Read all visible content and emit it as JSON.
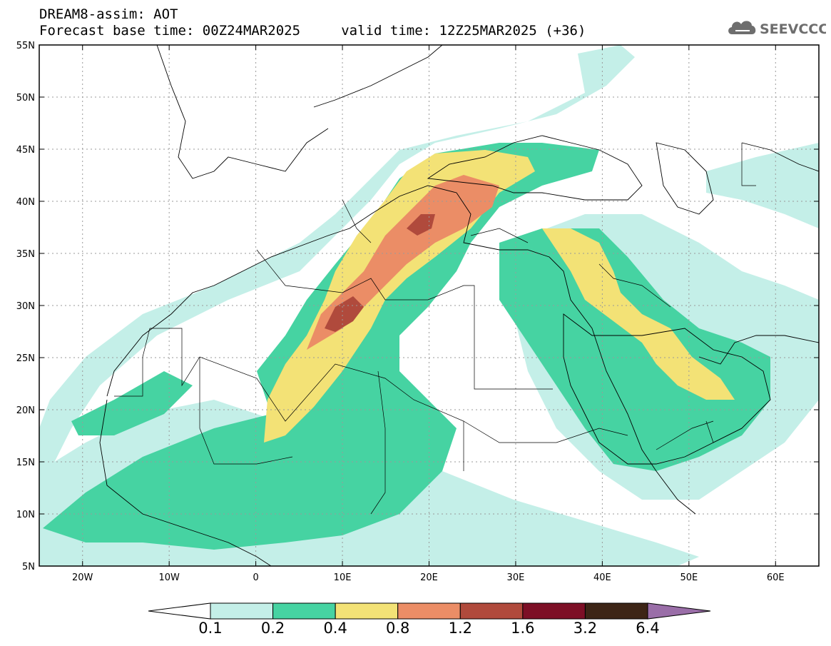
{
  "header": {
    "title_line1": "DREAM8-assim: AOT",
    "title_line2": "Forecast base time: 00Z24MAR2025     valid time: 12Z25MAR2025 (+36)",
    "logo_text": "SEEVCCC",
    "logo_icon": "cloud-icon"
  },
  "map": {
    "projection": "lat-lon",
    "lon_range": [
      -25,
      65
    ],
    "lat_range": [
      5,
      55
    ],
    "grid": true,
    "lon_ticks": [
      {
        "value": -20,
        "label": "20W"
      },
      {
        "value": -10,
        "label": "10W"
      },
      {
        "value": 0,
        "label": "0"
      },
      {
        "value": 10,
        "label": "10E"
      },
      {
        "value": 20,
        "label": "20E"
      },
      {
        "value": 30,
        "label": "30E"
      },
      {
        "value": 40,
        "label": "40E"
      },
      {
        "value": 50,
        "label": "50E"
      },
      {
        "value": 60,
        "label": "60E"
      }
    ],
    "lat_ticks": [
      {
        "value": 55,
        "label": "55N"
      },
      {
        "value": 50,
        "label": "50N"
      },
      {
        "value": 45,
        "label": "45N"
      },
      {
        "value": 40,
        "label": "40N"
      },
      {
        "value": 35,
        "label": "35N"
      },
      {
        "value": 30,
        "label": "30N"
      },
      {
        "value": 25,
        "label": "25N"
      },
      {
        "value": 20,
        "label": "20N"
      },
      {
        "value": 15,
        "label": "15N"
      },
      {
        "value": 10,
        "label": "10N"
      },
      {
        "value": 5,
        "label": "5N"
      }
    ]
  },
  "colorbar": {
    "levels": [
      "0.1",
      "0.2",
      "0.4",
      "0.8",
      "1.2",
      "1.6",
      "3.2",
      "6.4"
    ],
    "colors": [
      "#c4efe8",
      "#46d3a2",
      "#f3e276",
      "#eb8d66",
      "#b04a3c",
      "#7d0f26",
      "#3d2516"
    ],
    "under_color": "#ffffff",
    "over_color": "#9a6ea8"
  }
}
